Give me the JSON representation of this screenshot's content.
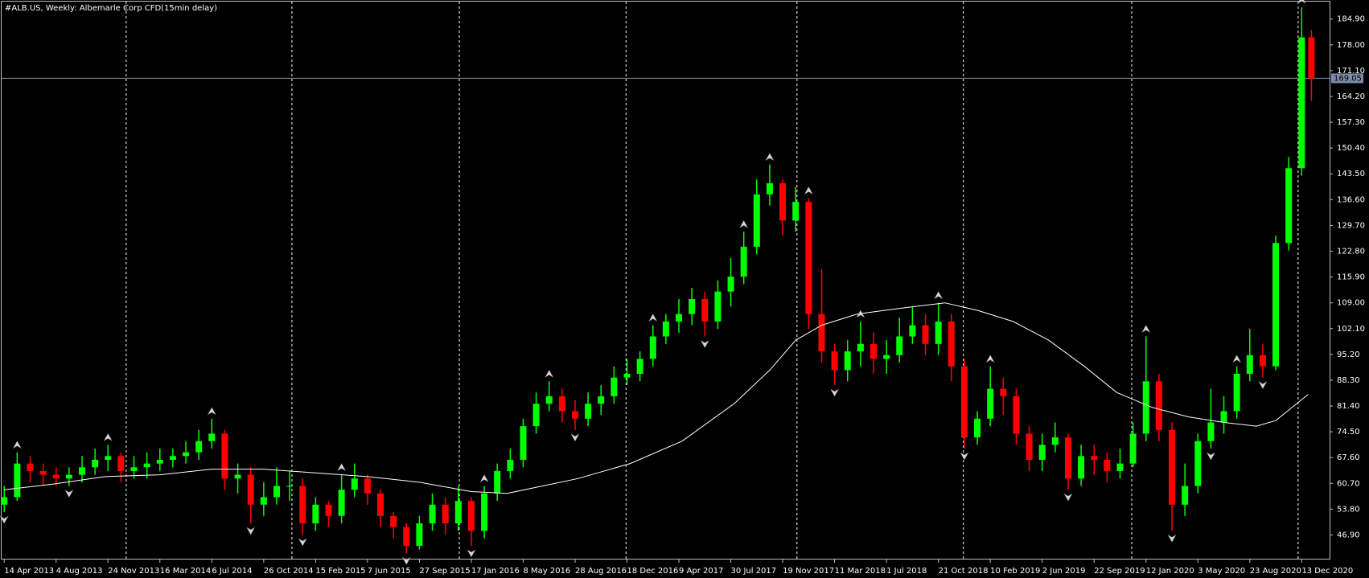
{
  "chart_data": {
    "type": "candlestick",
    "title": "#ALB.US, Weekly:  Albemarle Corp CFD(15min delay)",
    "x": [
      0,
      4,
      8,
      12,
      16,
      20,
      24,
      28,
      32,
      36,
      40,
      44,
      48,
      52,
      56,
      60,
      64,
      68,
      72,
      76,
      80,
      84,
      88,
      92,
      96,
      100,
      104,
      108,
      112,
      116,
      120,
      124,
      128,
      132,
      136,
      140,
      144,
      148,
      152,
      156,
      160,
      164,
      168,
      172,
      176,
      180,
      184,
      188,
      192,
      196,
      200,
      204,
      208,
      212,
      216,
      220,
      224,
      228,
      232,
      236,
      240,
      244,
      248,
      252,
      256,
      260,
      264,
      268,
      272,
      276,
      280,
      284,
      288,
      292,
      296,
      300,
      304,
      308,
      312,
      316,
      320,
      324,
      328,
      332,
      336,
      340,
      344,
      348,
      352,
      356,
      360,
      364,
      368,
      372,
      376,
      380,
      384,
      388,
      392,
      396,
      400,
      403
    ],
    "open": [
      55,
      57,
      66,
      64,
      63,
      62,
      63,
      65,
      67,
      68,
      64,
      65,
      66,
      67,
      68,
      69,
      72,
      74,
      62,
      63,
      55,
      57,
      60,
      60,
      50,
      55,
      52,
      59,
      62,
      58,
      52,
      49,
      44,
      50,
      55,
      50,
      56,
      48,
      58,
      64,
      67,
      76,
      82,
      84,
      80,
      78,
      82,
      84,
      89,
      90,
      94,
      100,
      104,
      106,
      110,
      104,
      112,
      116,
      124,
      138,
      141,
      131,
      136,
      106,
      96,
      91,
      96,
      98,
      94,
      95,
      100,
      103,
      98,
      104,
      92,
      73,
      78,
      86,
      84,
      74,
      67,
      71,
      73,
      62,
      68,
      67,
      64,
      66,
      74,
      88,
      75,
      55,
      60,
      72,
      77,
      80,
      90,
      95,
      92,
      125,
      145,
      180
    ],
    "high": [
      60,
      69,
      68,
      66,
      65,
      65,
      68,
      70,
      71,
      69,
      68,
      69,
      70,
      70,
      72,
      75,
      78,
      75,
      66,
      65,
      61,
      65,
      64,
      62,
      57,
      56,
      63,
      66,
      63,
      59,
      53,
      50,
      52,
      58,
      57,
      60,
      57,
      60,
      66,
      70,
      78,
      85,
      88,
      86,
      83,
      85,
      87,
      92,
      94,
      96,
      103,
      106,
      110,
      113,
      112,
      115,
      121,
      128,
      142,
      146,
      142,
      140,
      137,
      118,
      98,
      99,
      104,
      101,
      99,
      105,
      108,
      106,
      109,
      106,
      94,
      80,
      92,
      89,
      86,
      76,
      74,
      77,
      74,
      71,
      71,
      69,
      70,
      77,
      100,
      90,
      77,
      66,
      74,
      86,
      84,
      92,
      102,
      98,
      127,
      148,
      188,
      182
    ],
    "low": [
      53,
      56,
      61,
      60,
      60,
      60,
      61,
      63,
      64,
      61,
      62,
      62,
      64,
      65,
      66,
      67,
      70,
      59,
      58,
      50,
      52,
      55,
      56,
      47,
      48,
      49,
      50,
      57,
      55,
      49,
      46,
      42,
      43,
      48,
      47,
      48,
      44,
      46,
      56,
      62,
      65,
      74,
      80,
      77,
      75,
      76,
      79,
      82,
      87,
      88,
      92,
      98,
      101,
      103,
      100,
      102,
      108,
      114,
      122,
      135,
      127,
      128,
      102,
      93,
      87,
      88,
      92,
      90,
      90,
      93,
      98,
      95,
      95,
      88,
      70,
      71,
      76,
      79,
      71,
      64,
      64,
      69,
      59,
      60,
      63,
      61,
      62,
      65,
      72,
      72,
      48,
      52,
      58,
      70,
      74,
      78,
      88,
      89,
      91,
      123,
      143,
      163
    ],
    "close": [
      57,
      66,
      64,
      63,
      62,
      63,
      65,
      67,
      68,
      64,
      65,
      66,
      67,
      68,
      69,
      72,
      74,
      62,
      63,
      55,
      57,
      60,
      60,
      50,
      55,
      52,
      59,
      62,
      58,
      52,
      49,
      44,
      50,
      55,
      50,
      56,
      48,
      58,
      64,
      67,
      76,
      82,
      84,
      80,
      78,
      82,
      84,
      89,
      90,
      94,
      100,
      104,
      106,
      110,
      104,
      112,
      116,
      124,
      138,
      141,
      131,
      136,
      106,
      96,
      91,
      96,
      98,
      94,
      95,
      100,
      103,
      98,
      104,
      92,
      73,
      78,
      86,
      84,
      74,
      67,
      71,
      73,
      62,
      68,
      67,
      64,
      66,
      74,
      88,
      75,
      55,
      60,
      72,
      77,
      80,
      90,
      95,
      92,
      125,
      145,
      180,
      169.05
    ],
    "up_color": "#00ff00",
    "down_color": "#ff0000",
    "ma": {
      "color": "#ffffff",
      "x": [
        0,
        15,
        31,
        48,
        64,
        80,
        96,
        112,
        128,
        144,
        155,
        166,
        177,
        193,
        209,
        225,
        236,
        244,
        252,
        263,
        276,
        290,
        300,
        311,
        322,
        333,
        343,
        354,
        365,
        376,
        386,
        392,
        397,
        402
      ],
      "values": [
        59,
        60.5,
        62.5,
        63,
        64.5,
        64.5,
        63.5,
        62.5,
        61,
        58.5,
        58,
        60,
        62,
        66,
        72,
        82,
        91,
        99,
        103,
        106,
        107.5,
        109,
        107,
        104,
        99,
        92,
        85,
        81,
        78.5,
        77,
        76,
        77.5,
        81,
        84.5
      ]
    },
    "fractals_up": {
      "color": "#d8d8d8",
      "x": [
        4,
        32,
        64,
        104,
        148,
        168,
        200,
        228,
        236,
        248,
        264,
        288,
        304,
        352,
        380,
        400
      ],
      "values": [
        69,
        71,
        78,
        63,
        60,
        88,
        103,
        128,
        146,
        137,
        104,
        109,
        92,
        100,
        92,
        188
      ]
    },
    "fractals_down": {
      "color": "#d8d8d8",
      "x": [
        0,
        20,
        76,
        92,
        124,
        144,
        176,
        216,
        256,
        296,
        328,
        360,
        372,
        388
      ],
      "values": [
        53,
        60,
        50,
        47,
        42,
        44,
        75,
        100,
        87,
        70,
        59,
        48,
        70,
        89
      ]
    },
    "current_price": 169.05,
    "current_price_color": "#7b8ba8",
    "xlim": [
      -0.8,
      408.6
    ],
    "ylim": [
      40.33,
      189.57
    ],
    "separators": [
      37.6,
      88.7,
      140.3,
      191.7,
      244.4,
      295.7,
      347.6,
      398.9
    ],
    "xticks": [
      {
        "value": 0,
        "label": "14 Apr 2013"
      },
      {
        "value": 16,
        "label": "4 Aug 2013"
      },
      {
        "value": 32,
        "label": "24 Nov 2013"
      },
      {
        "value": 48,
        "label": "16 Mar 2014"
      },
      {
        "value": 64,
        "label": "6 Jul 2014"
      },
      {
        "value": 80,
        "label": "26 Oct 2014"
      },
      {
        "value": 96,
        "label": "15 Feb 2015"
      },
      {
        "value": 112,
        "label": "7 Jun 2015"
      },
      {
        "value": 128,
        "label": "27 Sep 2015"
      },
      {
        "value": 144,
        "label": "17 Jan 2016"
      },
      {
        "value": 160,
        "label": "8 May 2016"
      },
      {
        "value": 176,
        "label": "28 Aug 2016"
      },
      {
        "value": 192,
        "label": "18 Dec 2016"
      },
      {
        "value": 208,
        "label": "9 Apr 2017"
      },
      {
        "value": 224,
        "label": "30 Jul 2017"
      },
      {
        "value": 240,
        "label": "19 Nov 2017"
      },
      {
        "value": 256,
        "label": "11 Mar 2018"
      },
      {
        "value": 272,
        "label": "1 Jul 2018"
      },
      {
        "value": 288,
        "label": "21 Oct 2018"
      },
      {
        "value": 304,
        "label": "10 Feb 2019"
      },
      {
        "value": 320,
        "label": "2 Jun 2019"
      },
      {
        "value": 336,
        "label": "22 Sep 2019"
      },
      {
        "value": 352,
        "label": "12 Jan 2020"
      },
      {
        "value": 368,
        "label": "3 May 2020"
      },
      {
        "value": 384,
        "label": "23 Aug 2020"
      },
      {
        "value": 400,
        "label": "13 Dec 2020"
      }
    ],
    "yticks": [
      {
        "value": 184.9,
        "label": "184.90"
      },
      {
        "value": 178,
        "label": "178.00"
      },
      {
        "value": 171.1,
        "label": "171.10"
      },
      {
        "value": 164.2,
        "label": "164.20"
      },
      {
        "value": 157.3,
        "label": "157.30"
      },
      {
        "value": 150.4,
        "label": "150.40"
      },
      {
        "value": 143.5,
        "label": "143.50"
      },
      {
        "value": 136.6,
        "label": "136.60"
      },
      {
        "value": 129.7,
        "label": "129.70"
      },
      {
        "value": 122.8,
        "label": "122.80"
      },
      {
        "value": 115.9,
        "label": "115.90"
      },
      {
        "value": 109,
        "label": "109.00"
      },
      {
        "value": 102.1,
        "label": "102.10"
      },
      {
        "value": 95.2,
        "label": "95.20"
      },
      {
        "value": 88.3,
        "label": "88.30"
      },
      {
        "value": 81.4,
        "label": "81.40"
      },
      {
        "value": 74.5,
        "label": "74.50"
      },
      {
        "value": 67.6,
        "label": "67.60"
      },
      {
        "value": 60.7,
        "label": "60.70"
      },
      {
        "value": 53.8,
        "label": "53.80"
      },
      {
        "value": 46.9,
        "label": "46.90"
      }
    ]
  }
}
